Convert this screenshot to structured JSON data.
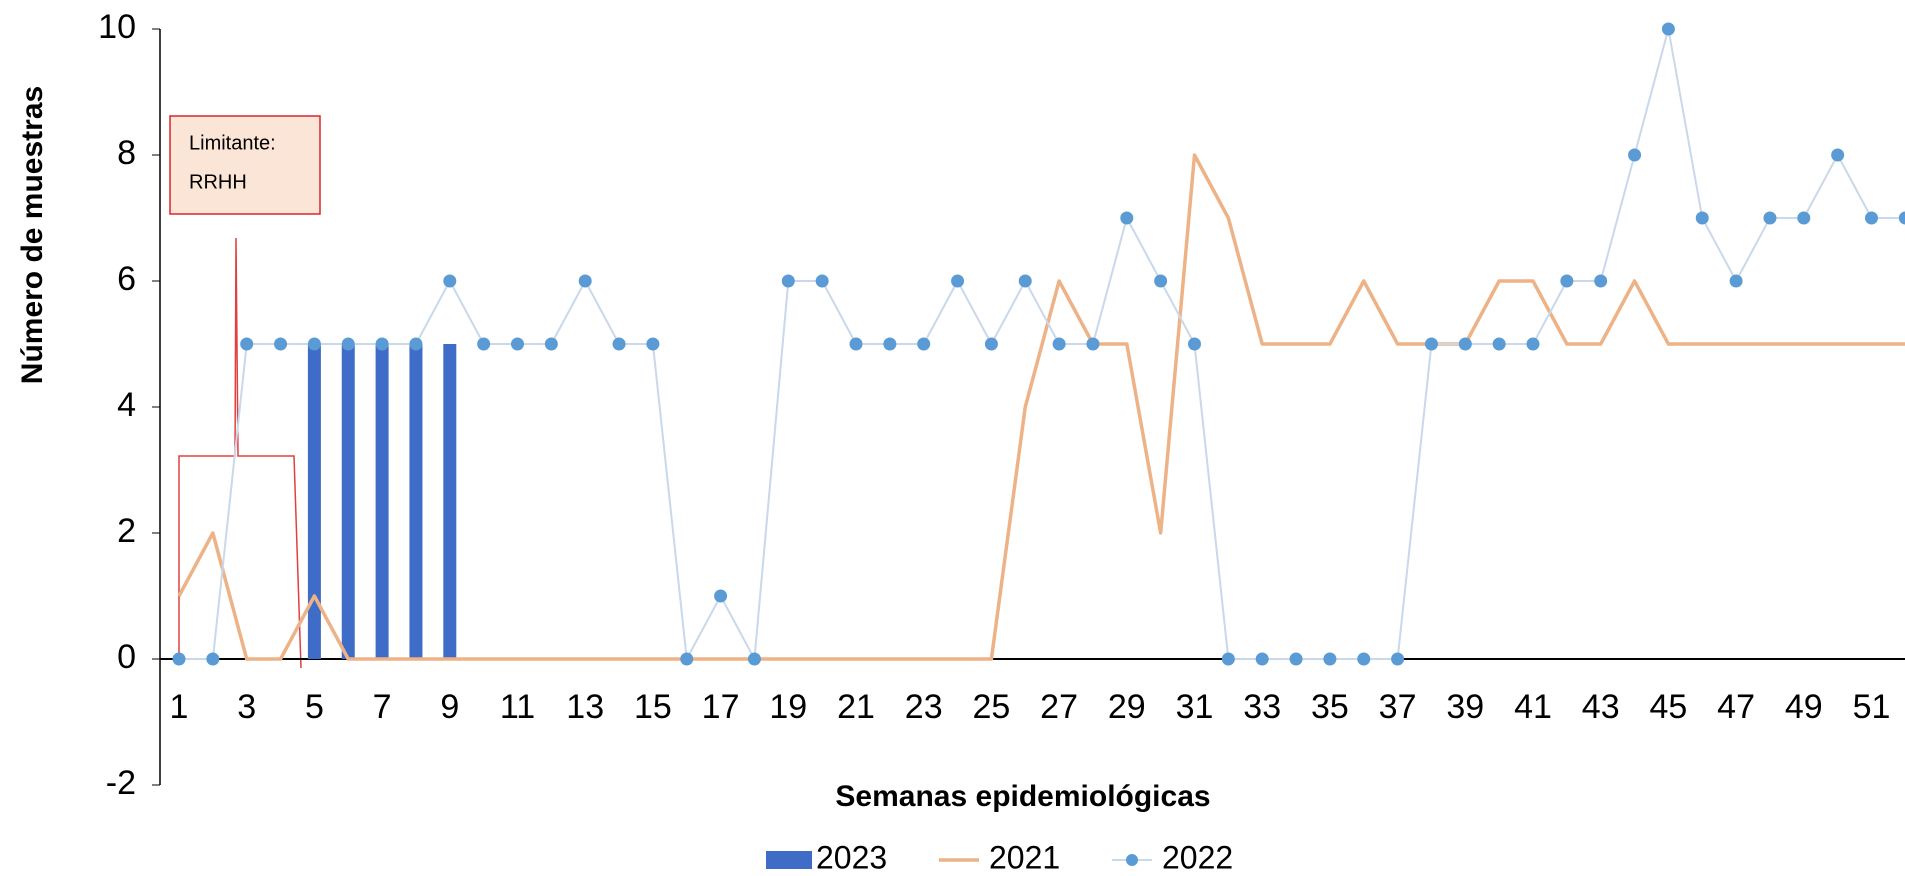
{
  "chart_data": {
    "type": "bar_line",
    "x_label": "Semanas epidemiológicas",
    "y_label": "Número de muestras",
    "annotation": [
      "Limitante:",
      "RRHH"
    ],
    "categories": [
      "1",
      null,
      "3",
      null,
      "5",
      null,
      "7",
      null,
      "9",
      null,
      "11",
      null,
      "13",
      null,
      "15",
      null,
      "17",
      null,
      "19",
      null,
      "21",
      null,
      "23",
      null,
      "25",
      null,
      "27",
      null,
      "29",
      null,
      "31",
      null,
      "33",
      null,
      "35",
      null,
      "37",
      null,
      "39",
      null,
      "41",
      null,
      "43",
      null,
      "45",
      null,
      "47",
      null,
      "49",
      null,
      "51",
      null
    ],
    "series": [
      {
        "name": "2023",
        "kind": "bar",
        "color": "#3f6cc6",
        "values": [
          0,
          0,
          0,
          0,
          5,
          5,
          5,
          5,
          5,
          null,
          null,
          null,
          null,
          null,
          null,
          null,
          null,
          null,
          null,
          null,
          null,
          null,
          null,
          null,
          null,
          null,
          null,
          null,
          null,
          null,
          null,
          null,
          null,
          null,
          null,
          null,
          null,
          null,
          null,
          null,
          null,
          null,
          null,
          null,
          null,
          null,
          null,
          null,
          null,
          null,
          null,
          null
        ]
      },
      {
        "name": "2021",
        "kind": "line",
        "color": "#eeb287",
        "values": [
          1,
          2,
          0,
          0,
          1,
          0,
          0,
          0,
          0,
          0,
          0,
          0,
          0,
          0,
          0,
          0,
          0,
          0,
          0,
          0,
          0,
          0,
          0,
          0,
          0,
          4,
          6,
          5,
          5,
          2,
          8,
          7,
          5,
          5,
          5,
          6,
          5,
          5,
          5,
          6,
          6,
          5,
          5,
          6,
          5,
          5,
          5,
          5,
          5,
          5,
          5,
          5
        ]
      },
      {
        "name": "2022",
        "kind": "line_marker",
        "color": "#c9d8ea",
        "marker_color": "#5b9bd5",
        "values": [
          0,
          0,
          5,
          5,
          5,
          5,
          5,
          5,
          6,
          5,
          5,
          5,
          6,
          5,
          5,
          0,
          1,
          0,
          6,
          6,
          5,
          5,
          5,
          6,
          5,
          6,
          5,
          5,
          7,
          6,
          5,
          0,
          0,
          0,
          0,
          0,
          0,
          5,
          5,
          5,
          5,
          6,
          6,
          8,
          10,
          7,
          6,
          7,
          7,
          8,
          7,
          7
        ]
      }
    ],
    "ylim": [
      -2,
      10
    ],
    "yticks": [
      -2,
      0,
      2,
      4,
      6,
      8,
      10
    ]
  }
}
